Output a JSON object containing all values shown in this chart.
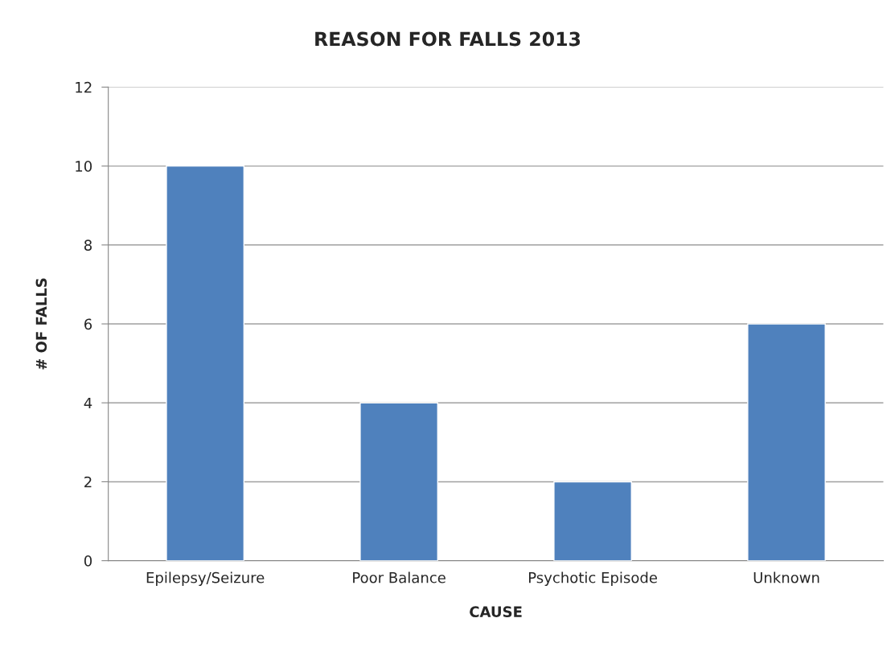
{
  "chart_data": {
    "type": "bar",
    "title": "REASON FOR FALLS 2013",
    "xlabel": "CAUSE",
    "ylabel": "# OF FALLS",
    "categories": [
      "Epilepsy/Seizure",
      "Poor Balance",
      "Psychotic Episode",
      "Unknown"
    ],
    "values": [
      10,
      4,
      2,
      6
    ],
    "color": "#4f81bd",
    "ylim": [
      0,
      12
    ],
    "yticks": [
      0,
      2,
      4,
      6,
      8,
      10,
      12
    ],
    "grid": "y",
    "legend": false
  }
}
